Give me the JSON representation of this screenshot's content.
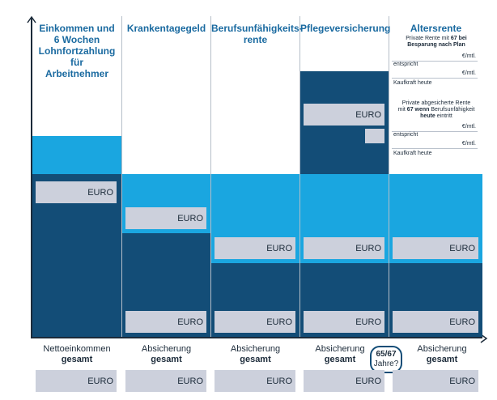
{
  "columns": [
    {
      "heading": "Einkommen und\n6 Wochen\nLohnfortzahlung für\nArbeitnehmer"
    },
    {
      "heading": "Krankentagegeld"
    },
    {
      "heading": "Berufsunfähigkeits-\nrente"
    },
    {
      "heading": "Pflegeversicherung"
    },
    {
      "heading": "Altersrente"
    }
  ],
  "euro": "EURO",
  "rente": {
    "note1_pre": "Private Rente mit ",
    "note1_b": "67 bei",
    "note1_line2": "Besparung nach Plan",
    "note2_line1": "Private abgesicherte Rente",
    "note2_line2_pre": "mit ",
    "note2_line2_b": "67 wenn",
    "note2_line2_post": " Berufsunfähigkeit",
    "note2_line3_b": "heute",
    "note2_line3_post": " eintritt",
    "per_month": "€/mtl.",
    "entspricht": "entspricht",
    "kaufkraft": "Kaufkraft heute"
  },
  "bottom": [
    {
      "line1": "Nettoeinkommen",
      "line2": "gesamt"
    },
    {
      "line1": "Absicherung",
      "line2": "gesamt"
    },
    {
      "line1": "Absicherung",
      "line2": "gesamt"
    },
    {
      "line1": "Absicherung",
      "line2": "gesamt"
    },
    {
      "line1": "Absicherung",
      "line2": "gesamt"
    }
  ],
  "age_badge": {
    "line1": "65/67",
    "line2": "Jahre?"
  }
}
